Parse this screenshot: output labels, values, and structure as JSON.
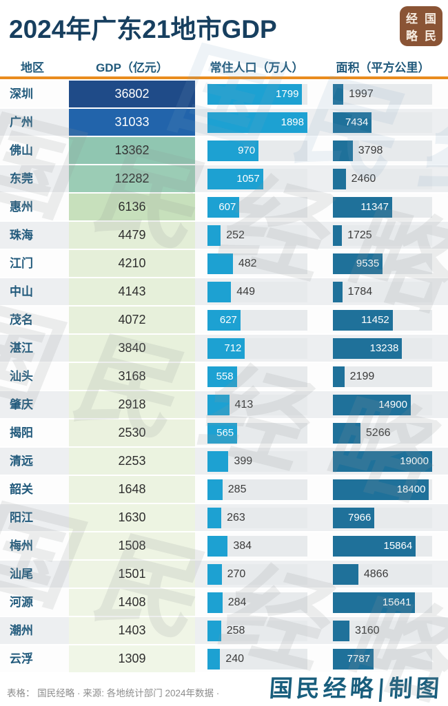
{
  "title": "2024年广东21地市GDP",
  "logo": {
    "name": "国民经略",
    "chars": [
      "经",
      "国",
      "略",
      "民"
    ],
    "bg_color": "#8a5435"
  },
  "columns": {
    "region": "地区",
    "gdp": "GDP（亿元）",
    "population": "常住人口（万人）",
    "area": "面积（平方公里）"
  },
  "footer": {
    "source": "表格： 国民经略 · 来源: 各地统计部门 2024年数据 ·",
    "credit": "国民经略|制图"
  },
  "watermark_text": "国民经略",
  "colors": {
    "title": "#173f5f",
    "header_text": "#20597b",
    "rule_orange": "#e98c1e",
    "pop_bar": "#1da1d2",
    "area_bar": "#1f719a",
    "bar_track": "#e7eaec",
    "row_stripe": "#edeff1",
    "label_inside": "#ffffff",
    "label_outside": "#3a3a3a",
    "credit_teal": "#195e7d"
  },
  "chart_data": {
    "type": "bar",
    "title": "2024年广东21地市GDP",
    "columns": [
      "地区",
      "GDP（亿元）",
      "常住人口（万人）",
      "面积（平方公里）"
    ],
    "population_axis_max": 1898,
    "area_axis_max": 19000,
    "gdp_color_scale_note": "GDP cell background ramps dark navy (high) to pale green (low)",
    "cities": [
      {
        "name": "深圳",
        "gdp": 36802,
        "population": 1799,
        "area": 1997,
        "gdp_bg": "#1f4b88",
        "gdp_text": "#ffffff"
      },
      {
        "name": "广州",
        "gdp": 31033,
        "population": 1898,
        "area": 7434,
        "gdp_bg": "#2264ab",
        "gdp_text": "#ffffff"
      },
      {
        "name": "佛山",
        "gdp": 13362,
        "population": 970,
        "area": 3798,
        "gdp_bg": "#90c6b1",
        "gdp_text": "#2e2e2e"
      },
      {
        "name": "东莞",
        "gdp": 12282,
        "population": 1057,
        "area": 2460,
        "gdp_bg": "#9bccb5",
        "gdp_text": "#2e2e2e"
      },
      {
        "name": "惠州",
        "gdp": 6136,
        "population": 607,
        "area": 11347,
        "gdp_bg": "#c7e0bc",
        "gdp_text": "#2e2e2e"
      },
      {
        "name": "珠海",
        "gdp": 4479,
        "population": 252,
        "area": 1725,
        "gdp_bg": "#e3eed7",
        "gdp_text": "#2e2e2e"
      },
      {
        "name": "江门",
        "gdp": 4210,
        "population": 482,
        "area": 9535,
        "gdp_bg": "#e5efd9",
        "gdp_text": "#2e2e2e"
      },
      {
        "name": "中山",
        "gdp": 4143,
        "population": 449,
        "area": 1784,
        "gdp_bg": "#e6f0da",
        "gdp_text": "#2e2e2e"
      },
      {
        "name": "茂名",
        "gdp": 4072,
        "population": 627,
        "area": 11452,
        "gdp_bg": "#e7f0db",
        "gdp_text": "#2e2e2e"
      },
      {
        "name": "湛江",
        "gdp": 3840,
        "population": 712,
        "area": 13238,
        "gdp_bg": "#e8f1dc",
        "gdp_text": "#2e2e2e"
      },
      {
        "name": "汕头",
        "gdp": 3168,
        "population": 558,
        "area": 2199,
        "gdp_bg": "#e9f1dd",
        "gdp_text": "#2e2e2e"
      },
      {
        "name": "肇庆",
        "gdp": 2918,
        "population": 413,
        "area": 14900,
        "gdp_bg": "#eaf2de",
        "gdp_text": "#2e2e2e"
      },
      {
        "name": "揭阳",
        "gdp": 2530,
        "population": 565,
        "area": 5266,
        "gdp_bg": "#ebf2df",
        "gdp_text": "#2e2e2e"
      },
      {
        "name": "清远",
        "gdp": 2253,
        "population": 399,
        "area": 19000,
        "gdp_bg": "#ebf3e0",
        "gdp_text": "#2e2e2e"
      },
      {
        "name": "韶关",
        "gdp": 1648,
        "population": 285,
        "area": 18400,
        "gdp_bg": "#ecf3e1",
        "gdp_text": "#2e2e2e"
      },
      {
        "name": "阳江",
        "gdp": 1630,
        "population": 263,
        "area": 7966,
        "gdp_bg": "#edf4e2",
        "gdp_text": "#2e2e2e"
      },
      {
        "name": "梅州",
        "gdp": 1508,
        "population": 384,
        "area": 15864,
        "gdp_bg": "#eef4e3",
        "gdp_text": "#2e2e2e"
      },
      {
        "name": "汕尾",
        "gdp": 1501,
        "population": 270,
        "area": 4866,
        "gdp_bg": "#eef4e4",
        "gdp_text": "#2e2e2e"
      },
      {
        "name": "河源",
        "gdp": 1408,
        "population": 284,
        "area": 15641,
        "gdp_bg": "#eff5e5",
        "gdp_text": "#2e2e2e"
      },
      {
        "name": "潮州",
        "gdp": 1403,
        "population": 258,
        "area": 3160,
        "gdp_bg": "#f0f5e6",
        "gdp_text": "#2e2e2e"
      },
      {
        "name": "云浮",
        "gdp": 1309,
        "population": 240,
        "area": 7787,
        "gdp_bg": "#f0f6e7",
        "gdp_text": "#2e2e2e"
      }
    ]
  }
}
